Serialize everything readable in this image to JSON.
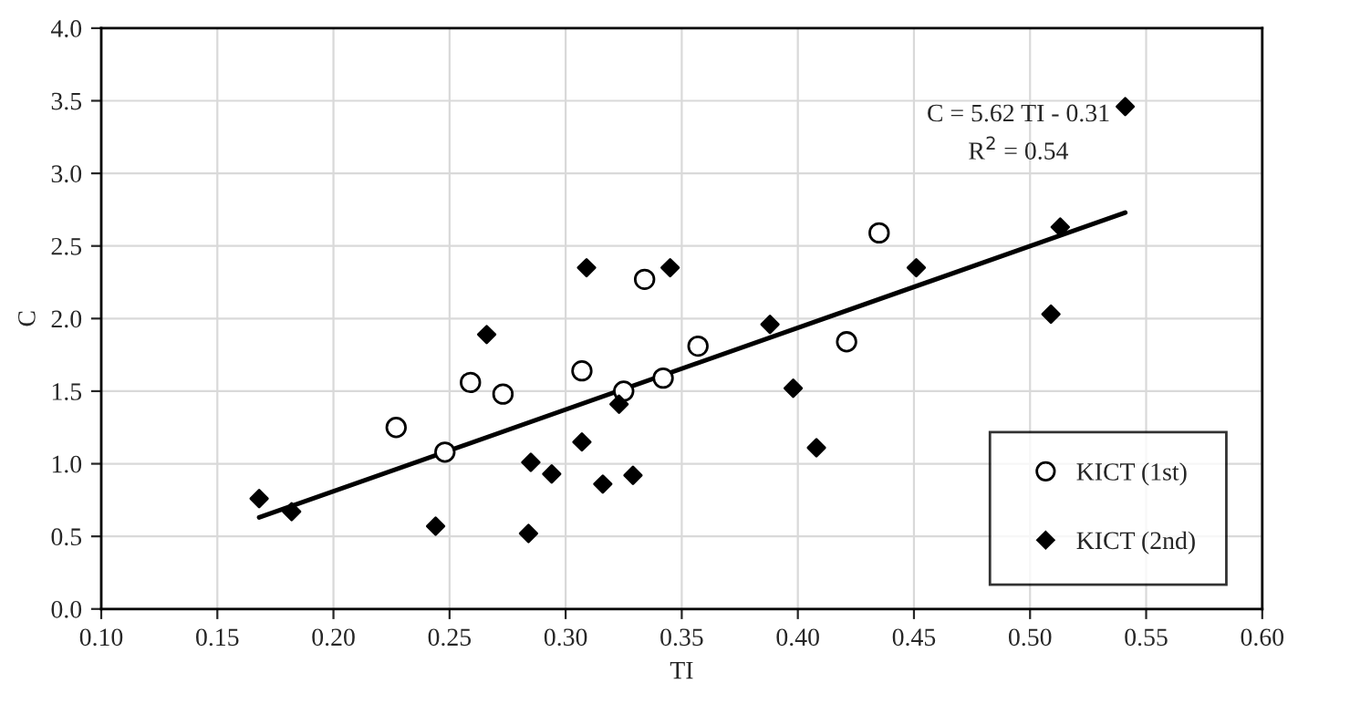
{
  "chart_data": {
    "type": "scatter",
    "xlabel": "TI",
    "ylabel": "C",
    "xlim": [
      0.1,
      0.6
    ],
    "xticks": [
      {
        "value": 0.1,
        "label": "0.10"
      },
      {
        "value": 0.15,
        "label": "0.15"
      },
      {
        "value": 0.2,
        "label": "0.20"
      },
      {
        "value": 0.25,
        "label": "0.25"
      },
      {
        "value": 0.3,
        "label": "0.30"
      },
      {
        "value": 0.35,
        "label": "0.35"
      },
      {
        "value": 0.4,
        "label": "0.40"
      },
      {
        "value": 0.45,
        "label": "0.45"
      },
      {
        "value": 0.5,
        "label": "0.50"
      },
      {
        "value": 0.55,
        "label": "0.55"
      },
      {
        "value": 0.6,
        "label": "0.60"
      }
    ],
    "ylim": [
      0,
      4
    ],
    "yticks": [
      {
        "value": 0,
        "label": "0.0"
      },
      {
        "value": 0.5,
        "label": "0.5"
      },
      {
        "value": 1,
        "label": "1.0"
      },
      {
        "value": 1.5,
        "label": "1.5"
      },
      {
        "value": 2,
        "label": "2.0"
      },
      {
        "value": 2.5,
        "label": "2.5"
      },
      {
        "value": 3,
        "label": "3.0"
      },
      {
        "value": 3.5,
        "label": "3.5"
      },
      {
        "value": 4,
        "label": "4.0"
      }
    ],
    "grid": true,
    "legend": "bottom right",
    "annotations": [
      "C = 5.62 TI - 0.31",
      "R$^{2}$ = 0.54"
    ],
    "series": [
      {
        "name": "KICT (1st)",
        "marker": "circle",
        "color": "#000000",
        "x": [
          0.227,
          0.248,
          0.259,
          0.273,
          0.307,
          0.325,
          0.334,
          0.342,
          0.357,
          0.421,
          0.435
        ],
        "values": [
          1.25,
          1.08,
          1.56,
          1.48,
          1.64,
          1.5,
          2.27,
          1.59,
          1.81,
          1.84,
          2.59
        ]
      },
      {
        "name": "KICT (2nd)",
        "marker": "diamond",
        "color": "#000000",
        "x": [
          0.168,
          0.182,
          0.244,
          0.266,
          0.285,
          0.294,
          0.284,
          0.309,
          0.345,
          0.307,
          0.316,
          0.329,
          0.323,
          0.388,
          0.398,
          0.408,
          0.451,
          0.541,
          0.513,
          0.509
        ],
        "values": [
          0.76,
          0.67,
          0.57,
          1.89,
          1.01,
          0.93,
          0.52,
          2.35,
          2.35,
          1.15,
          0.86,
          0.92,
          1.41,
          1.96,
          1.52,
          1.11,
          2.35,
          3.46,
          2.63,
          2.03
        ]
      },
      {
        "type": "line",
        "color": "#000000",
        "line_style": "solid",
        "x": [
          0.168,
          0.541
        ],
        "values": [
          0.63,
          2.73
        ]
      }
    ]
  }
}
